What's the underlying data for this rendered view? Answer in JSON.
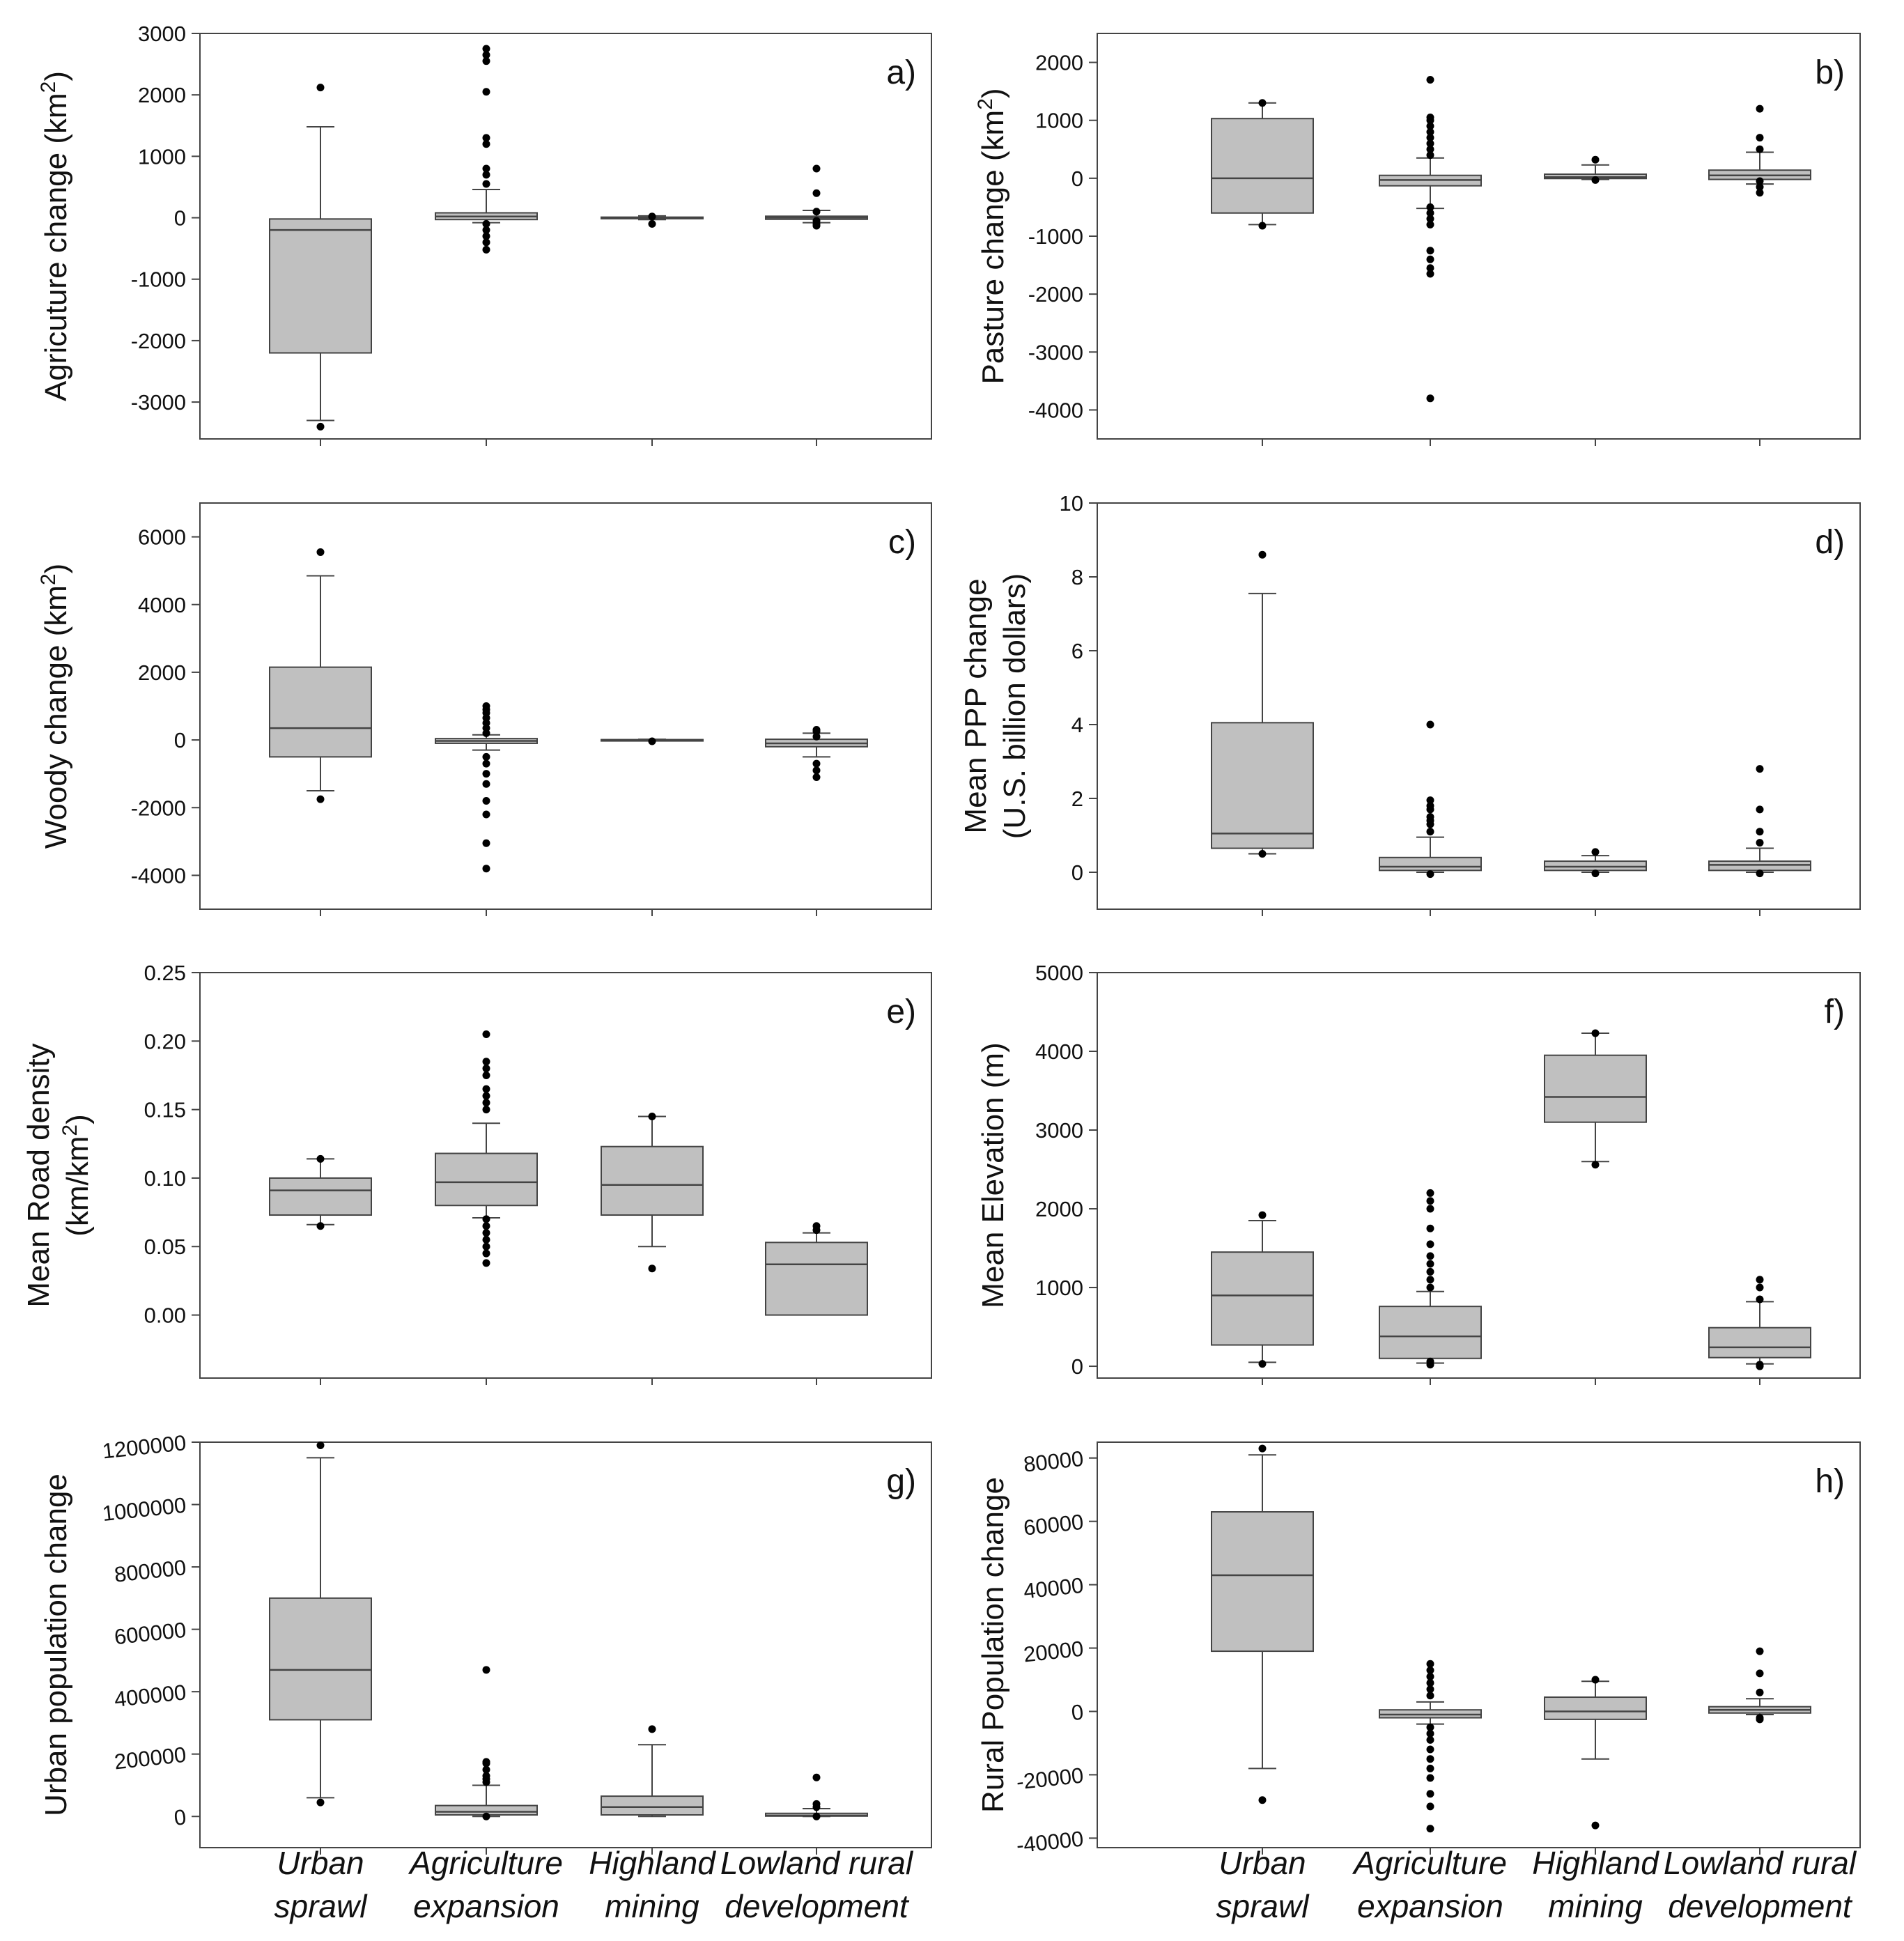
{
  "colors": {
    "box_fill": "#c0c0c0",
    "stroke": "#444444",
    "outlier": "#000000"
  },
  "categories": [
    [
      "Urban",
      "sprawl"
    ],
    [
      "Agriculture",
      "expansion"
    ],
    [
      "Highland",
      "mining"
    ],
    [
      "Lowland rural",
      "development"
    ]
  ],
  "chart_data": [
    {
      "type": "box",
      "panel_label": "a)",
      "ylabel": [
        "Agricuture change (km²)"
      ],
      "ylim": [
        -3600,
        3000
      ],
      "yticks": [
        -3000,
        -2000,
        -1000,
        0,
        1000,
        2000,
        3000
      ],
      "tick_labels": [
        "-3000",
        "-2000",
        "-1000",
        "0",
        "1000",
        "2000",
        "3000"
      ],
      "boxes": [
        {
          "low": -3300,
          "q1": -2200,
          "median": -200,
          "q3": -20,
          "high": 1480,
          "outliers": [
            -3400,
            2120
          ]
        },
        {
          "low": -80,
          "q1": -30,
          "median": 20,
          "q3": 80,
          "high": 460,
          "outliers": [
            -520,
            -400,
            -300,
            -200,
            -100,
            550,
            700,
            800,
            1200,
            1300,
            2050,
            2550,
            2650,
            2750
          ]
        },
        {
          "low": -30,
          "q1": -15,
          "median": 0,
          "q3": 10,
          "high": 30,
          "outliers": [
            -100,
            20
          ]
        },
        {
          "low": -80,
          "q1": -25,
          "median": 0,
          "q3": 25,
          "high": 120,
          "outliers": [
            -130,
            -100,
            -50,
            100,
            400,
            800
          ]
        }
      ]
    },
    {
      "type": "box",
      "panel_label": "b)",
      "ylabel": [
        "Pasture change (km²)"
      ],
      "ylim": [
        -4500,
        2500
      ],
      "yticks": [
        -4000,
        -3000,
        -2000,
        -1000,
        0,
        1000,
        2000
      ],
      "tick_labels": [
        "-4000",
        "-3000",
        "-2000",
        "-1000",
        "0",
        "1000",
        "2000"
      ],
      "boxes": [
        {
          "low": -800,
          "q1": -600,
          "median": 0,
          "q3": 1030,
          "high": 1300,
          "outliers": [
            -820,
            1300
          ]
        },
        {
          "low": -520,
          "q1": -130,
          "median": -30,
          "q3": 50,
          "high": 350,
          "outliers": [
            -3800,
            -1650,
            -1550,
            -1400,
            -1250,
            -800,
            -700,
            -600,
            -500,
            400,
            500,
            600,
            700,
            800,
            900,
            1000,
            1050,
            1700
          ]
        },
        {
          "low": -20,
          "q1": -5,
          "median": 20,
          "q3": 70,
          "high": 230,
          "outliers": [
            -30,
            320
          ]
        },
        {
          "low": -100,
          "q1": -20,
          "median": 50,
          "q3": 140,
          "high": 450,
          "outliers": [
            -250,
            -150,
            -50,
            500,
            700,
            1200
          ]
        }
      ]
    },
    {
      "type": "box",
      "panel_label": "c)",
      "ylabel": [
        "Woody change (km²)"
      ],
      "ylim": [
        -5000,
        7000
      ],
      "yticks": [
        -4000,
        -2000,
        0,
        2000,
        4000,
        6000
      ],
      "tick_labels": [
        "-4000",
        "-2000",
        "0",
        "2000",
        "4000",
        "6000"
      ],
      "boxes": [
        {
          "low": -1500,
          "q1": -500,
          "median": 350,
          "q3": 2150,
          "high": 4850,
          "outliers": [
            -1750,
            5550
          ]
        },
        {
          "low": -300,
          "q1": -100,
          "median": -30,
          "q3": 40,
          "high": 150,
          "outliers": [
            -3800,
            -3050,
            -2200,
            -1800,
            -1300,
            -1000,
            -700,
            -500,
            200,
            350,
            500,
            650,
            800,
            900,
            1000
          ]
        },
        {
          "low": -20,
          "q1": -10,
          "median": 0,
          "q3": 10,
          "high": 20,
          "outliers": [
            -40
          ]
        },
        {
          "low": -500,
          "q1": -200,
          "median": -100,
          "q3": 20,
          "high": 200,
          "outliers": [
            -1100,
            -900,
            -700,
            100,
            250,
            300
          ]
        }
      ]
    },
    {
      "type": "box",
      "panel_label": "d)",
      "ylabel": [
        "Mean PPP change",
        "(U.S. billion dollars)"
      ],
      "ylim": [
        -1,
        10
      ],
      "yticks": [
        0,
        2,
        4,
        6,
        8,
        10
      ],
      "tick_labels": [
        "0",
        "2",
        "4",
        "6",
        "8",
        "10"
      ],
      "boxes": [
        {
          "low": 0.5,
          "q1": 0.65,
          "median": 1.05,
          "q3": 4.05,
          "high": 7.55,
          "outliers": [
            0.5,
            8.6
          ]
        },
        {
          "low": 0.0,
          "q1": 0.05,
          "median": 0.15,
          "q3": 0.4,
          "high": 0.95,
          "outliers": [
            -0.05,
            1.1,
            1.3,
            1.4,
            1.5,
            1.7,
            1.8,
            1.95,
            4.0
          ]
        },
        {
          "low": 0.0,
          "q1": 0.05,
          "median": 0.15,
          "q3": 0.3,
          "high": 0.45,
          "outliers": [
            -0.03,
            0.55
          ]
        },
        {
          "low": 0.0,
          "q1": 0.05,
          "median": 0.2,
          "q3": 0.3,
          "high": 0.65,
          "outliers": [
            -0.03,
            0.8,
            1.1,
            1.7,
            2.8
          ]
        }
      ]
    },
    {
      "type": "box",
      "panel_label": "e)",
      "ylabel": [
        "Mean Road density",
        "(km/km²)"
      ],
      "ylim": [
        -0.046,
        0.25
      ],
      "yticks": [
        0.0,
        0.05,
        0.1,
        0.15,
        0.2,
        0.25
      ],
      "tick_labels": [
        "0.00",
        "0.05",
        "0.10",
        "0.15",
        "0.20",
        "0.25"
      ],
      "boxes": [
        {
          "low": 0.066,
          "q1": 0.073,
          "median": 0.091,
          "q3": 0.1,
          "high": 0.114,
          "outliers": [
            0.065,
            0.114
          ]
        },
        {
          "low": 0.071,
          "q1": 0.08,
          "median": 0.097,
          "q3": 0.118,
          "high": 0.14,
          "outliers": [
            0.038,
            0.045,
            0.05,
            0.055,
            0.06,
            0.065,
            0.07,
            0.15,
            0.155,
            0.16,
            0.165,
            0.175,
            0.18,
            0.185,
            0.205
          ]
        },
        {
          "low": 0.05,
          "q1": 0.073,
          "median": 0.095,
          "q3": 0.123,
          "high": 0.145,
          "outliers": [
            0.034,
            0.145
          ]
        },
        {
          "low": 0.0,
          "q1": 0.0,
          "median": 0.037,
          "q3": 0.053,
          "high": 0.06,
          "outliers": [
            0.062,
            0.065
          ]
        }
      ]
    },
    {
      "type": "box",
      "panel_label": "f)",
      "ylabel": [
        "Mean Elevation (m)"
      ],
      "ylim": [
        -150,
        5000
      ],
      "yticks": [
        0,
        1000,
        2000,
        3000,
        4000,
        5000
      ],
      "tick_labels": [
        "0",
        "1000",
        "2000",
        "3000",
        "4000",
        "5000"
      ],
      "boxes": [
        {
          "low": 50,
          "q1": 270,
          "median": 900,
          "q3": 1450,
          "high": 1850,
          "outliers": [
            30,
            1920
          ]
        },
        {
          "low": 40,
          "q1": 100,
          "median": 380,
          "q3": 760,
          "high": 950,
          "outliers": [
            20,
            60,
            1000,
            1100,
            1200,
            1300,
            1400,
            1550,
            1750,
            2000,
            2100,
            2200
          ]
        },
        {
          "low": 2600,
          "q1": 3100,
          "median": 3420,
          "q3": 3950,
          "high": 4230,
          "outliers": [
            2560,
            4230
          ]
        },
        {
          "low": 30,
          "q1": 110,
          "median": 240,
          "q3": 490,
          "high": 820,
          "outliers": [
            0,
            20,
            850,
            1000,
            1100
          ]
        }
      ]
    },
    {
      "type": "box",
      "panel_label": "g)",
      "ylabel": [
        "Urban population change"
      ],
      "ylim": [
        -100000,
        1200000
      ],
      "yticks": [
        0,
        200000,
        400000,
        600000,
        800000,
        1000000,
        1200000
      ],
      "tick_labels": [
        "0",
        "200000",
        "400000",
        "600000",
        "800000",
        "1000000",
        "1200000"
      ],
      "boxes": [
        {
          "low": 60000,
          "q1": 310000,
          "median": 470000,
          "q3": 700000,
          "high": 1150000,
          "outliers": [
            45000,
            1190000
          ]
        },
        {
          "low": 0,
          "q1": 5000,
          "median": 15000,
          "q3": 35000,
          "high": 100000,
          "outliers": [
            0,
            110000,
            120000,
            130000,
            150000,
            170000,
            175000,
            470000
          ]
        },
        {
          "low": 0,
          "q1": 5000,
          "median": 30000,
          "q3": 65000,
          "high": 230000,
          "outliers": [
            280000
          ]
        },
        {
          "low": 0,
          "q1": 1000,
          "median": 3000,
          "q3": 10000,
          "high": 25000,
          "outliers": [
            0,
            30000,
            40000,
            125000
          ]
        }
      ]
    },
    {
      "type": "box",
      "panel_label": "h)",
      "ylabel": [
        "Rural Population change"
      ],
      "ylim": [
        -43000,
        85000
      ],
      "yticks": [
        -40000,
        -20000,
        0,
        20000,
        40000,
        60000,
        80000
      ],
      "tick_labels": [
        "-40000",
        "-20000",
        "0",
        "20000",
        "40000",
        "60000",
        "80000"
      ],
      "boxes": [
        {
          "low": -18000,
          "q1": 19000,
          "median": 43000,
          "q3": 63000,
          "high": 81000,
          "outliers": [
            -28000,
            83000
          ]
        },
        {
          "low": -4000,
          "q1": -2000,
          "median": -1000,
          "q3": 500,
          "high": 3000,
          "outliers": [
            -37000,
            -30000,
            -26000,
            -21000,
            -18000,
            -15000,
            -12000,
            -9000,
            -7000,
            -5000,
            5000,
            7000,
            9000,
            11000,
            13000,
            15000
          ]
        },
        {
          "low": -15000,
          "q1": -2500,
          "median": 0,
          "q3": 4500,
          "high": 9500,
          "outliers": [
            -36000,
            10000
          ]
        },
        {
          "low": -1000,
          "q1": -500,
          "median": 500,
          "q3": 1500,
          "high": 4000,
          "outliers": [
            -2500,
            -2000,
            6000,
            12000,
            19000
          ]
        }
      ]
    }
  ]
}
